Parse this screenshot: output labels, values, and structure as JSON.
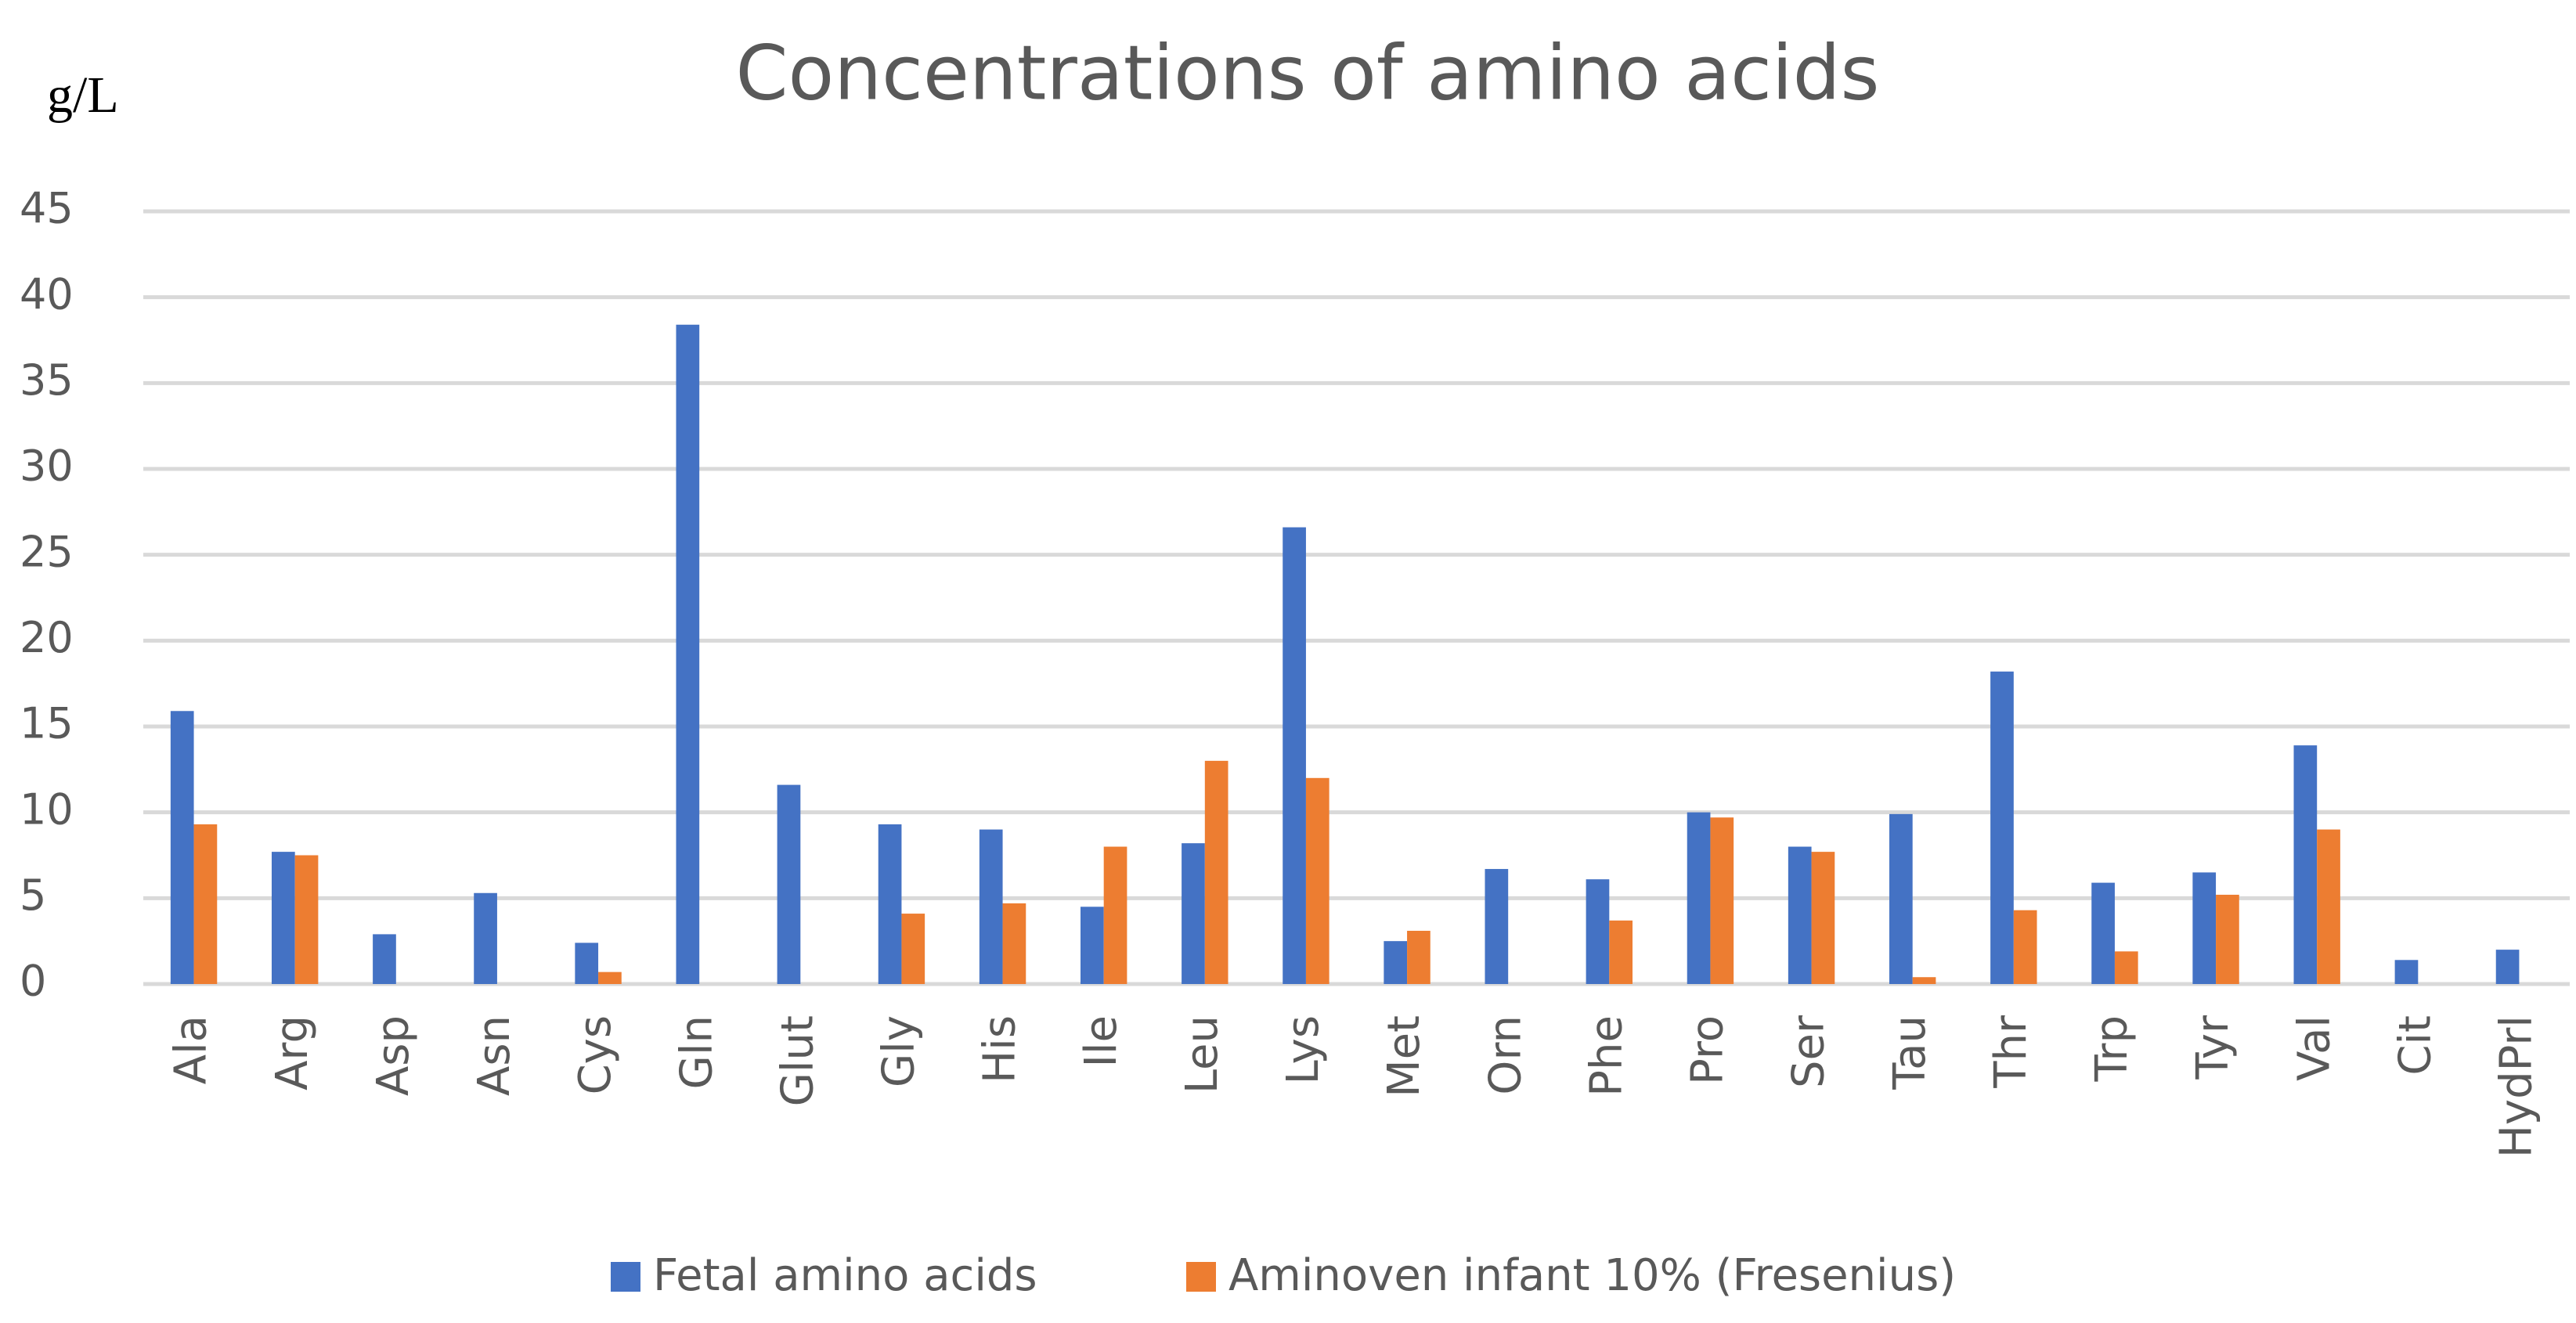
{
  "chart_data": {
    "type": "bar",
    "title": "Concentrations of amino acids",
    "y_label": "g/L",
    "categories": [
      "Ala",
      "Arg",
      "Asp",
      "Asn",
      "Cys",
      "Gln",
      "Glut",
      "Gly",
      "His",
      "Ile",
      "Leu",
      "Lys",
      "Met",
      "Orn",
      "Phe",
      "Pro",
      "Ser",
      "Tau",
      "Thr",
      "Trp",
      "Tyr",
      "Val",
      "Cit",
      "HydPrl"
    ],
    "series": [
      {
        "name": "Fetal amino acids",
        "color": "#4472c4",
        "values": [
          15.9,
          7.7,
          2.9,
          5.3,
          2.4,
          38.4,
          11.6,
          9.3,
          9.0,
          4.5,
          8.2,
          26.6,
          2.5,
          6.7,
          6.1,
          10.0,
          8.0,
          9.9,
          18.2,
          5.9,
          6.5,
          13.9,
          1.4,
          2.0
        ]
      },
      {
        "name": "Aminoven infant 10% (Fresenius)",
        "color": "#ed7d31",
        "values": [
          9.3,
          7.5,
          null,
          null,
          0.7,
          null,
          null,
          4.1,
          4.7,
          8.0,
          13.0,
          12.0,
          3.1,
          null,
          3.7,
          9.7,
          7.7,
          0.4,
          4.3,
          1.9,
          5.2,
          9.0,
          null,
          null
        ]
      }
    ],
    "ylim": [
      0,
      45
    ],
    "yticks": [
      0,
      5,
      10,
      15,
      20,
      25,
      30,
      35,
      40,
      45
    ],
    "grid": true,
    "legend": "bottom"
  }
}
